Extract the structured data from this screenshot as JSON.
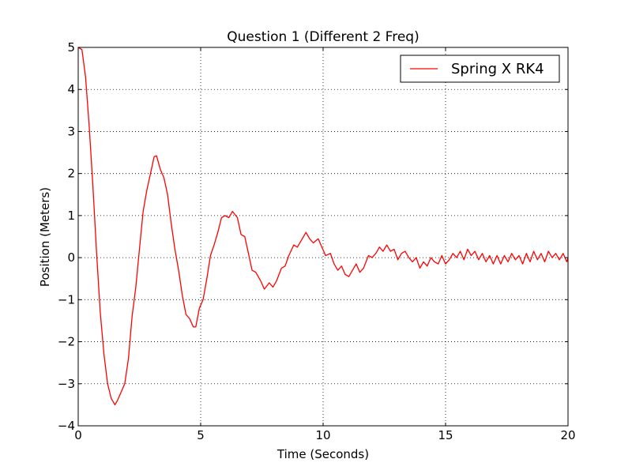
{
  "chart_data": {
    "type": "line",
    "title": "Question 1 (Different 2 Freq)",
    "xlabel": "Time (Seconds)",
    "ylabel": "Position (Meters)",
    "xlim": [
      0,
      20
    ],
    "ylim": [
      -4,
      5
    ],
    "xticks": [
      "0",
      "5",
      "10",
      "15",
      "20"
    ],
    "yticks": [
      "5",
      "4",
      "3",
      "2",
      "1",
      "0",
      "−1",
      "−2",
      "−3",
      "−4"
    ],
    "grid": true,
    "legend_position": "top-right",
    "line_color": "#ff0000",
    "series": [
      {
        "name": "Spring X RK4",
        "x": [
          0.0,
          0.15,
          0.3,
          0.45,
          0.6,
          0.75,
          0.9,
          1.05,
          1.2,
          1.35,
          1.5,
          1.6,
          1.75,
          1.9,
          2.05,
          2.2,
          2.35,
          2.5,
          2.65,
          2.8,
          2.95,
          3.1,
          3.2,
          3.35,
          3.5,
          3.65,
          3.8,
          3.95,
          4.1,
          4.25,
          4.4,
          4.55,
          4.7,
          4.8,
          4.95,
          5.1,
          5.25,
          5.4,
          5.55,
          5.7,
          5.85,
          6.0,
          6.15,
          6.3,
          6.5,
          6.65,
          6.8,
          6.95,
          7.1,
          7.25,
          7.45,
          7.6,
          7.8,
          7.95,
          8.1,
          8.3,
          8.45,
          8.6,
          8.8,
          8.95,
          9.1,
          9.3,
          9.45,
          9.6,
          9.8,
          9.95,
          10.1,
          10.3,
          10.45,
          10.6,
          10.75,
          10.9,
          11.05,
          11.2,
          11.35,
          11.5,
          11.65,
          11.85,
          12.0,
          12.15,
          12.3,
          12.45,
          12.6,
          12.75,
          12.9,
          13.05,
          13.2,
          13.35,
          13.5,
          13.65,
          13.8,
          13.95,
          14.1,
          14.25,
          14.4,
          14.55,
          14.7,
          14.85,
          15.0,
          15.15,
          15.3,
          15.45,
          15.6,
          15.75,
          15.9,
          16.05,
          16.2,
          16.35,
          16.5,
          16.65,
          16.8,
          16.95,
          17.1,
          17.25,
          17.4,
          17.55,
          17.7,
          17.85,
          18.0,
          18.15,
          18.3,
          18.45,
          18.6,
          18.75,
          18.9,
          19.05,
          19.2,
          19.35,
          19.5,
          19.65,
          19.8,
          19.95,
          20.0
        ],
        "y": [
          5.0,
          4.95,
          4.3,
          3.1,
          1.7,
          0.1,
          -1.3,
          -2.3,
          -3.0,
          -3.35,
          -3.5,
          -3.4,
          -3.2,
          -3.0,
          -2.4,
          -1.4,
          -0.7,
          0.2,
          1.1,
          1.6,
          2.0,
          2.4,
          2.42,
          2.1,
          1.9,
          1.5,
          0.8,
          0.2,
          -0.3,
          -0.9,
          -1.35,
          -1.45,
          -1.65,
          -1.65,
          -1.2,
          -1.0,
          -0.5,
          0.05,
          0.3,
          0.6,
          0.95,
          1.0,
          0.95,
          1.1,
          0.95,
          0.55,
          0.5,
          0.1,
          -0.3,
          -0.35,
          -0.55,
          -0.75,
          -0.6,
          -0.7,
          -0.55,
          -0.25,
          -0.2,
          0.05,
          0.3,
          0.25,
          0.4,
          0.6,
          0.45,
          0.35,
          0.45,
          0.25,
          0.05,
          0.1,
          -0.15,
          -0.3,
          -0.2,
          -0.4,
          -0.45,
          -0.3,
          -0.15,
          -0.35,
          -0.25,
          0.05,
          0.0,
          0.1,
          0.25,
          0.15,
          0.3,
          0.15,
          0.2,
          -0.05,
          0.1,
          0.15,
          0.0,
          -0.1,
          0.0,
          -0.25,
          -0.1,
          -0.2,
          0.0,
          -0.1,
          -0.15,
          0.05,
          -0.15,
          -0.05,
          0.1,
          0.0,
          0.15,
          -0.05,
          0.2,
          0.05,
          0.15,
          -0.05,
          0.1,
          -0.1,
          0.05,
          -0.15,
          0.05,
          -0.15,
          0.05,
          -0.1,
          0.1,
          -0.05,
          0.05,
          -0.15,
          0.1,
          -0.1,
          0.15,
          -0.05,
          0.1,
          -0.1,
          0.15,
          0.0,
          0.1,
          -0.05,
          0.1,
          -0.1,
          0.0
        ]
      }
    ]
  }
}
